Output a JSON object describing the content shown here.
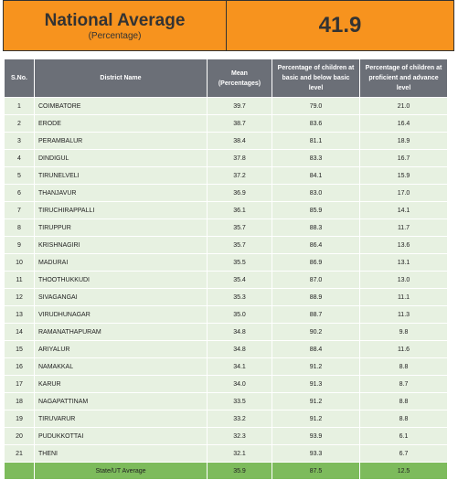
{
  "header": {
    "title": "National Average",
    "subtitle": "(Percentage)",
    "value": "41.9"
  },
  "table": {
    "columns": [
      "S.No.",
      "District Name",
      "Mean (Percentages)",
      "Percentage of children at basic and below basic level",
      "Percentage of children at proficient and advance level"
    ],
    "rows": [
      [
        "1",
        "COIMBATORE",
        "39.7",
        "79.0",
        "21.0"
      ],
      [
        "2",
        "ERODE",
        "38.7",
        "83.6",
        "16.4"
      ],
      [
        "3",
        "PERAMBALUR",
        "38.4",
        "81.1",
        "18.9"
      ],
      [
        "4",
        "DINDIGUL",
        "37.8",
        "83.3",
        "16.7"
      ],
      [
        "5",
        "TIRUNELVELI",
        "37.2",
        "84.1",
        "15.9"
      ],
      [
        "6",
        "THANJAVUR",
        "36.9",
        "83.0",
        "17.0"
      ],
      [
        "7",
        "TIRUCHIRAPPALLI",
        "36.1",
        "85.9",
        "14.1"
      ],
      [
        "8",
        "TIRUPPUR",
        "35.7",
        "88.3",
        "11.7"
      ],
      [
        "9",
        "KRISHNAGIRI",
        "35.7",
        "86.4",
        "13.6"
      ],
      [
        "10",
        "MADURAI",
        "35.5",
        "86.9",
        "13.1"
      ],
      [
        "11",
        "THOOTHUKKUDI",
        "35.4",
        "87.0",
        "13.0"
      ],
      [
        "12",
        "SIVAGANGAI",
        "35.3",
        "88.9",
        "11.1"
      ],
      [
        "13",
        "VIRUDHUNAGAR",
        "35.0",
        "88.7",
        "11.3"
      ],
      [
        "14",
        "RAMANATHAPURAM",
        "34.8",
        "90.2",
        "9.8"
      ],
      [
        "15",
        "ARIYALUR",
        "34.8",
        "88.4",
        "11.6"
      ],
      [
        "16",
        "NAMAKKAL",
        "34.1",
        "91.2",
        "8.8"
      ],
      [
        "17",
        "KARUR",
        "34.0",
        "91.3",
        "8.7"
      ],
      [
        "18",
        "NAGAPATTINAM",
        "33.5",
        "91.2",
        "8.8"
      ],
      [
        "19",
        "TIRUVARUR",
        "33.2",
        "91.2",
        "8.8"
      ],
      [
        "20",
        "PUDUKKOTTAI",
        "32.3",
        "93.9",
        "6.1"
      ],
      [
        "21",
        "THENI",
        "32.1",
        "93.3",
        "6.7"
      ]
    ],
    "footer": [
      "State/UT Average",
      "35.9",
      "87.5",
      "12.5"
    ]
  }
}
